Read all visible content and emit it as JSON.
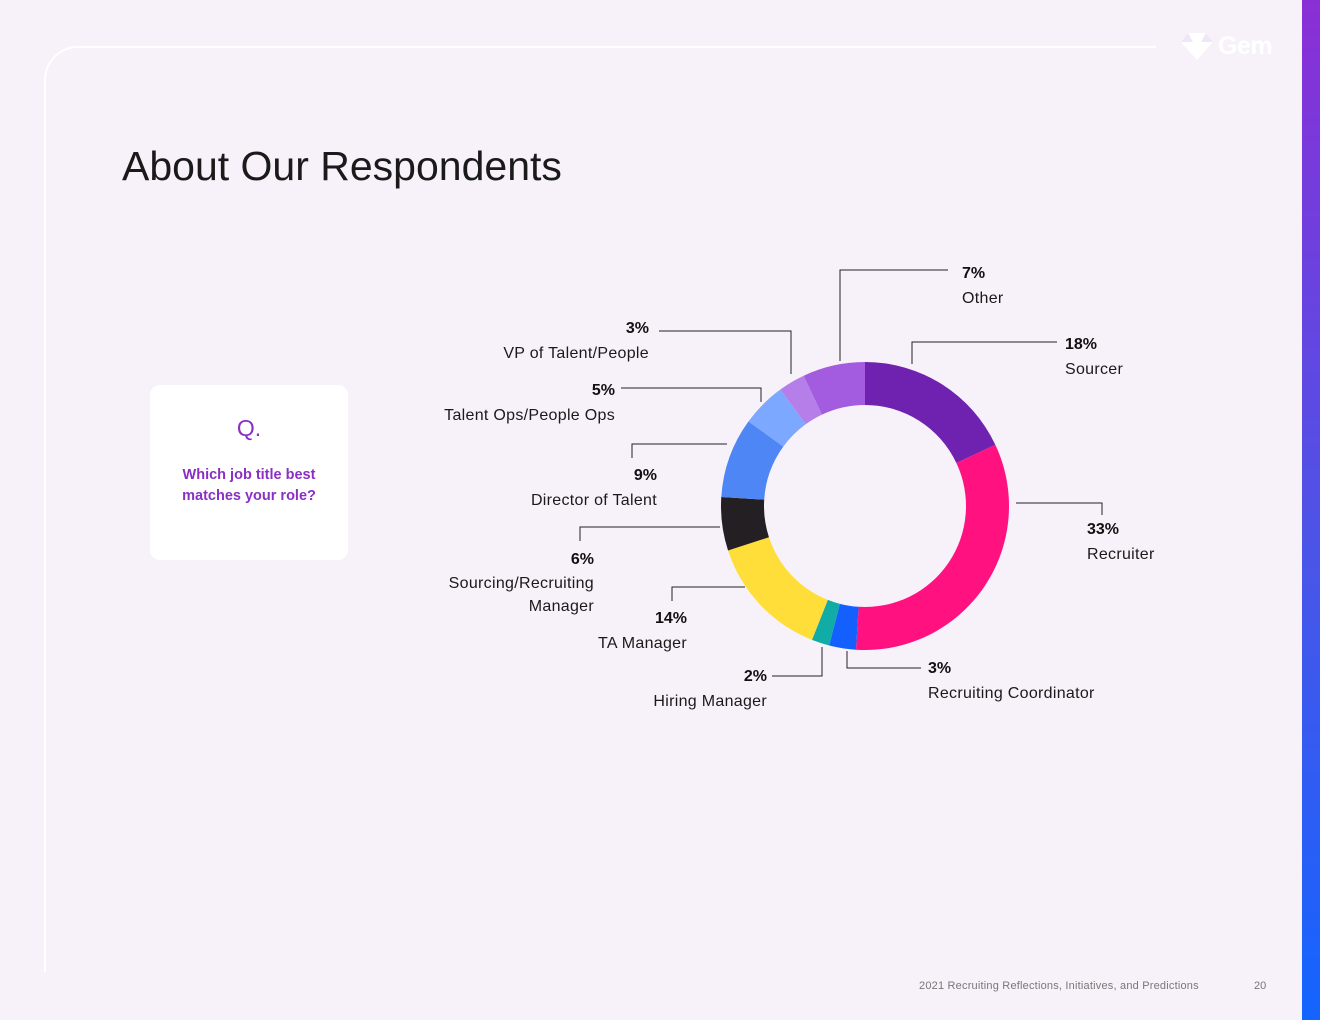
{
  "page": {
    "title": "About Our Respondents",
    "footer": "2021 Recruiting Reflections, Initiatives, and Predictions",
    "page_number": "20"
  },
  "brand": {
    "name": "Gem",
    "accent": "#8a2fc4"
  },
  "question": {
    "label": "Q.",
    "text": "Which job title best matches your role?"
  },
  "chart_data": {
    "type": "pie",
    "variant": "donut",
    "start": "top",
    "direction": "clockwise",
    "slices": [
      {
        "label": "Sourcer",
        "value": 18,
        "display": "18%",
        "color": "#6f22b0"
      },
      {
        "label": "Recruiter",
        "value": 33,
        "display": "33%",
        "color": "#ff117f"
      },
      {
        "label": "Recruiting Coordinator",
        "value": 3,
        "display": "3%",
        "color": "#1460ff"
      },
      {
        "label": "Hiring Manager",
        "value": 2,
        "display": "2%",
        "color": "#10aca5"
      },
      {
        "label": "TA Manager",
        "value": 14,
        "display": "14%",
        "color": "#ffde3a"
      },
      {
        "label": "Sourcing/Recruiting Manager",
        "value": 6,
        "display": "6%",
        "color": "#231f22"
      },
      {
        "label": "Director of Talent",
        "value": 9,
        "display": "9%",
        "color": "#4e87f5"
      },
      {
        "label": "Talent Ops/People Ops",
        "value": 5,
        "display": "5%",
        "color": "#7ca9ff"
      },
      {
        "label": "VP of Talent/People",
        "value": 3,
        "display": "3%",
        "color": "#b57ee8"
      },
      {
        "label": "Other",
        "value": 7,
        "display": "7%",
        "color": "#a35be0"
      }
    ]
  }
}
